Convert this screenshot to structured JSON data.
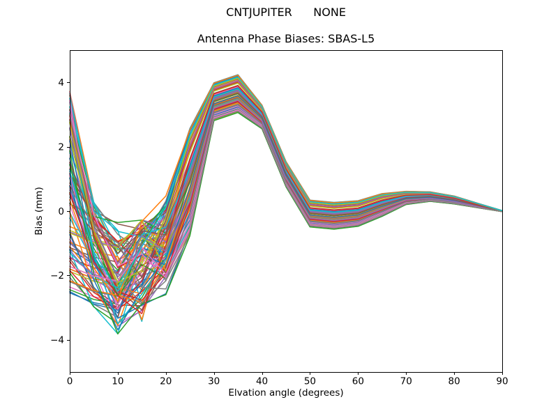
{
  "chart_data": {
    "type": "line",
    "suptitle": "CNTJUPITER      NONE",
    "title": "Antenna Phase Biases: SBAS-L5",
    "xlabel": "Elvation angle (degrees)",
    "ylabel": "Bias (mm)",
    "xlim": [
      0,
      90
    ],
    "ylim": [
      -5,
      5
    ],
    "xticks": [
      0,
      10,
      20,
      30,
      40,
      50,
      60,
      70,
      80,
      90
    ],
    "yticks": [
      -4,
      -2,
      0,
      2,
      4
    ],
    "grid": false,
    "legend": false,
    "n_lines": 100,
    "x": [
      0,
      5,
      10,
      15,
      20,
      25,
      30,
      35,
      40,
      45,
      50,
      55,
      60,
      65,
      70,
      75,
      80,
      85,
      90
    ],
    "band_upper": [
      3.8,
      0.4,
      -0.25,
      -0.28,
      0.9,
      2.6,
      4.0,
      4.25,
      3.3,
      1.55,
      0.35,
      0.28,
      0.33,
      0.55,
      0.62,
      0.6,
      0.47,
      0.24,
      0.015
    ],
    "band_lower": [
      -2.6,
      -3.25,
      -3.85,
      -3.45,
      -2.6,
      -0.8,
      2.8,
      3.05,
      2.55,
      0.75,
      -0.5,
      -0.57,
      -0.48,
      -0.17,
      0.2,
      0.3,
      0.22,
      0.1,
      -0.015
    ],
    "description": "Dense bundle of ~100 overlapping phase-bias curves sampled every 5 degrees of elevation. Curves fan out at 0 deg (between -2.6 and 3.8 mm), descend to minima near 10-15 deg (down to -3.85 mm) with a braided crossing region between -0.3 and -3.4 mm, rise together to a peak near 35 deg (3.05 to 4.25 mm), dip near 55 deg (about -0.55 to 0.3 mm), show a small bump near 70-75 deg (about 0.3 to 0.62 mm), and all converge to 0 mm at 90 deg.",
    "colors": [
      "#1f77b4",
      "#ff7f0e",
      "#2ca02c",
      "#d62728",
      "#9467bd",
      "#8c564b",
      "#e377c2",
      "#7f7f7f",
      "#bcbd22",
      "#17becf"
    ],
    "line_width": 1.5,
    "axis_color": "#000000",
    "text_color": "#000000",
    "background": "#ffffff"
  }
}
